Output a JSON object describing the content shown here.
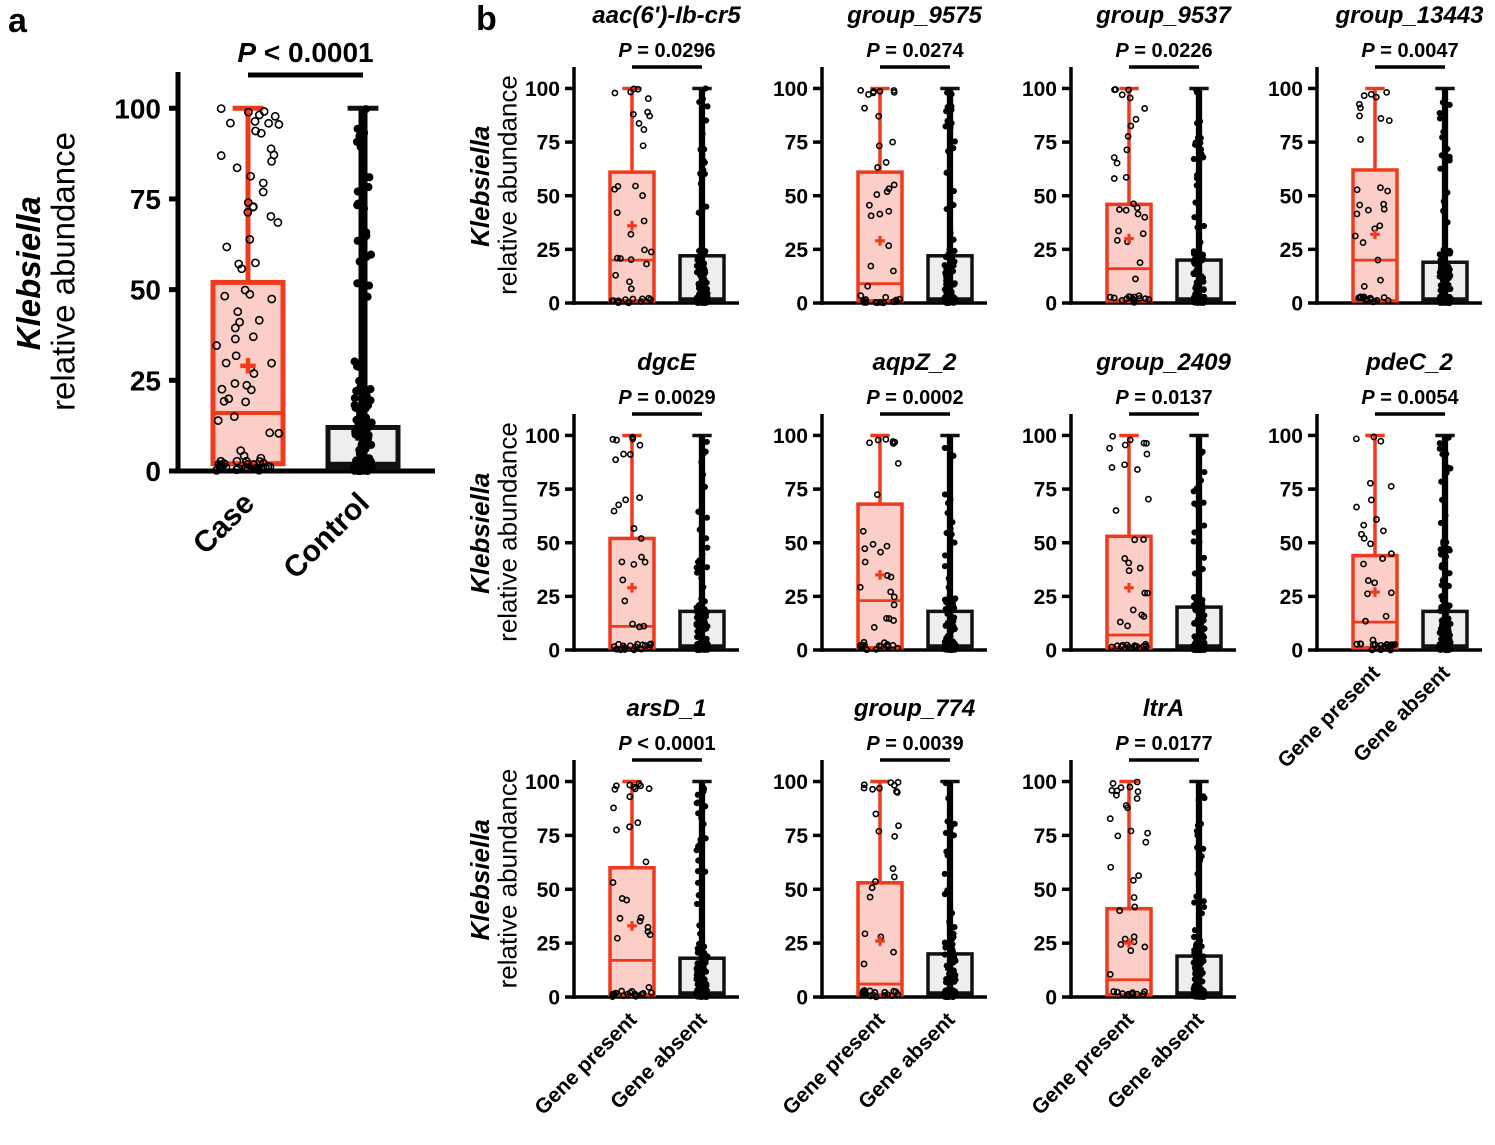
{
  "colors": {
    "case": "#f03a1e",
    "case_fill": "#fbcfc7",
    "control": "#111111",
    "control_fill": "#eeeeee"
  },
  "chart_data": [
    {
      "panel": "a",
      "type": "box",
      "ylabel_italic": "Klebsiella",
      "ylabel": "relative abundance",
      "yticks": [
        0,
        25,
        50,
        75,
        100
      ],
      "ylim": [
        0,
        110
      ],
      "categories": [
        "Case",
        "Control"
      ],
      "pvalue_prefix": "P",
      "pvalue_text": " < 0.0001",
      "series": [
        {
          "name": "Case",
          "min": 0,
          "q1": 2,
          "median": 16,
          "q3": 52,
          "max": 100,
          "mean": 29
        },
        {
          "name": "Control",
          "min": 0,
          "q1": 1,
          "median": 2,
          "q3": 12,
          "max": 100,
          "mean": 9
        }
      ]
    },
    {
      "panel": "b",
      "gene": "aac(6')-Ib-cr5",
      "type": "box",
      "ylabel_italic": "Klebsiella",
      "ylabel": "relative abundance",
      "yticks": [
        0,
        25,
        50,
        75,
        100
      ],
      "ylim": [
        0,
        110
      ],
      "categories": [
        "Gene present",
        "Gene absent"
      ],
      "pvalue_prefix": "P",
      "pvalue_text": " = 0.0296",
      "series": [
        {
          "name": "Gene present",
          "min": 0,
          "q1": 1,
          "median": 20,
          "q3": 61,
          "max": 100,
          "mean": 36
        },
        {
          "name": "Gene absent",
          "min": 0,
          "q1": 1,
          "median": 2,
          "q3": 22,
          "max": 100,
          "mean": 13
        }
      ]
    },
    {
      "panel": "b",
      "gene": "group_9575",
      "type": "box",
      "ylabel_italic": "Klebsiella",
      "ylabel": "relative abundance",
      "yticks": [
        0,
        25,
        50,
        75,
        100
      ],
      "ylim": [
        0,
        110
      ],
      "categories": [
        "Gene present",
        "Gene absent"
      ],
      "pvalue_prefix": "P",
      "pvalue_text": " = 0.0274",
      "series": [
        {
          "name": "Gene present",
          "min": 0,
          "q1": 1,
          "median": 9,
          "q3": 61,
          "max": 100,
          "mean": 29
        },
        {
          "name": "Gene absent",
          "min": 0,
          "q1": 1,
          "median": 2,
          "q3": 22,
          "max": 100,
          "mean": 17
        }
      ]
    },
    {
      "panel": "b",
      "gene": "group_9537",
      "type": "box",
      "ylabel_italic": "Klebsiella",
      "ylabel": "relative abundance",
      "yticks": [
        0,
        25,
        50,
        75,
        100
      ],
      "ylim": [
        0,
        110
      ],
      "categories": [
        "Gene present",
        "Gene absent"
      ],
      "pvalue_prefix": "P",
      "pvalue_text": " = 0.0226",
      "series": [
        {
          "name": "Gene present",
          "min": 0,
          "q1": 1,
          "median": 16,
          "q3": 46,
          "max": 100,
          "mean": 30
        },
        {
          "name": "Gene absent",
          "min": 0,
          "q1": 1,
          "median": 2,
          "q3": 20,
          "max": 100,
          "mean": 13
        }
      ]
    },
    {
      "panel": "b",
      "gene": "group_13443",
      "type": "box",
      "ylabel_italic": "Klebsiella",
      "ylabel": "relative abundance",
      "yticks": [
        0,
        25,
        50,
        75,
        100
      ],
      "ylim": [
        0,
        110
      ],
      "categories": [
        "Gene present",
        "Gene absent"
      ],
      "pvalue_prefix": "P",
      "pvalue_text": " = 0.0047",
      "series": [
        {
          "name": "Gene present",
          "min": 0,
          "q1": 1,
          "median": 20,
          "q3": 62,
          "max": 100,
          "mean": 32
        },
        {
          "name": "Gene absent",
          "min": 0,
          "q1": 1,
          "median": 2,
          "q3": 19,
          "max": 100,
          "mean": 13
        }
      ]
    },
    {
      "panel": "b",
      "gene": "dgcE",
      "type": "box",
      "ylabel_italic": "Klebsiella",
      "ylabel": "relative abundance",
      "yticks": [
        0,
        25,
        50,
        75,
        100
      ],
      "ylim": [
        0,
        110
      ],
      "categories": [
        "Gene present",
        "Gene absent"
      ],
      "pvalue_prefix": "P",
      "pvalue_text": " = 0.0029",
      "series": [
        {
          "name": "Gene present",
          "min": 0,
          "q1": 1,
          "median": 11,
          "q3": 52,
          "max": 100,
          "mean": 29
        },
        {
          "name": "Gene absent",
          "min": 0,
          "q1": 1,
          "median": 2,
          "q3": 18,
          "max": 100,
          "mean": 13
        }
      ]
    },
    {
      "panel": "b",
      "gene": "aqpZ_2",
      "type": "box",
      "ylabel_italic": "Klebsiella",
      "ylabel": "relative abundance",
      "yticks": [
        0,
        25,
        50,
        75,
        100
      ],
      "ylim": [
        0,
        110
      ],
      "categories": [
        "Gene present",
        "Gene absent"
      ],
      "pvalue_prefix": "P",
      "pvalue_text": " = 0.0002",
      "series": [
        {
          "name": "Gene present",
          "min": 0,
          "q1": 1,
          "median": 23,
          "q3": 68,
          "max": 100,
          "mean": 35
        },
        {
          "name": "Gene absent",
          "min": 0,
          "q1": 1,
          "median": 2,
          "q3": 18,
          "max": 100,
          "mean": 13
        }
      ]
    },
    {
      "panel": "b",
      "gene": "group_2409",
      "type": "box",
      "ylabel_italic": "Klebsiella",
      "ylabel": "relative abundance",
      "yticks": [
        0,
        25,
        50,
        75,
        100
      ],
      "ylim": [
        0,
        110
      ],
      "categories": [
        "Gene present",
        "Gene absent"
      ],
      "pvalue_prefix": "P",
      "pvalue_text": " = 0.0137",
      "series": [
        {
          "name": "Gene present",
          "min": 0,
          "q1": 1,
          "median": 7,
          "q3": 53,
          "max": 100,
          "mean": 29
        },
        {
          "name": "Gene absent",
          "min": 0,
          "q1": 1,
          "median": 2,
          "q3": 20,
          "max": 100,
          "mean": 13
        }
      ]
    },
    {
      "panel": "b",
      "gene": "pdeC_2",
      "type": "box",
      "ylabel_italic": "Klebsiella",
      "ylabel": "relative abundance",
      "yticks": [
        0,
        25,
        50,
        75,
        100
      ],
      "ylim": [
        0,
        110
      ],
      "categories": [
        "Gene present",
        "Gene absent"
      ],
      "pvalue_prefix": "P",
      "pvalue_text": " = 0.0054",
      "series": [
        {
          "name": "Gene present",
          "min": 0,
          "q1": 1,
          "median": 13,
          "q3": 44,
          "max": 100,
          "mean": 27
        },
        {
          "name": "Gene absent",
          "min": 0,
          "q1": 1,
          "median": 2,
          "q3": 18,
          "max": 100,
          "mean": 13
        }
      ]
    },
    {
      "panel": "b",
      "gene": "arsD_1",
      "type": "box",
      "ylabel_italic": "Klebsiella",
      "ylabel": "relative abundance",
      "yticks": [
        0,
        25,
        50,
        75,
        100
      ],
      "ylim": [
        0,
        110
      ],
      "categories": [
        "Gene present",
        "Gene absent"
      ],
      "pvalue_prefix": "P",
      "pvalue_text": " < 0.0001",
      "series": [
        {
          "name": "Gene present",
          "min": 0,
          "q1": 1,
          "median": 17,
          "q3": 60,
          "max": 100,
          "mean": 33
        },
        {
          "name": "Gene absent",
          "min": 0,
          "q1": 1,
          "median": 2,
          "q3": 18,
          "max": 100,
          "mean": 13
        }
      ]
    },
    {
      "panel": "b",
      "gene": "group_774",
      "type": "box",
      "ylabel_italic": "Klebsiella",
      "ylabel": "relative abundance",
      "yticks": [
        0,
        25,
        50,
        75,
        100
      ],
      "ylim": [
        0,
        110
      ],
      "categories": [
        "Gene present",
        "Gene absent"
      ],
      "pvalue_prefix": "P",
      "pvalue_text": " = 0.0039",
      "series": [
        {
          "name": "Gene present",
          "min": 0,
          "q1": 1,
          "median": 6,
          "q3": 53,
          "max": 100,
          "mean": 26
        },
        {
          "name": "Gene absent",
          "min": 0,
          "q1": 1,
          "median": 2,
          "q3": 20,
          "max": 100,
          "mean": 13
        }
      ]
    },
    {
      "panel": "b",
      "gene": "ltrA",
      "type": "box",
      "ylabel_italic": "Klebsiella",
      "ylabel": "relative abundance",
      "yticks": [
        0,
        25,
        50,
        75,
        100
      ],
      "ylim": [
        0,
        110
      ],
      "categories": [
        "Gene present",
        "Gene absent"
      ],
      "pvalue_prefix": "P",
      "pvalue_text": " = 0.0177",
      "series": [
        {
          "name": "Gene present",
          "min": 0,
          "q1": 1,
          "median": 8,
          "q3": 41,
          "max": 100,
          "mean": 25
        },
        {
          "name": "Gene absent",
          "min": 0,
          "q1": 1,
          "median": 2,
          "q3": 19,
          "max": 100,
          "mean": 13
        }
      ]
    }
  ],
  "panel_labels": {
    "a": "a",
    "b": "b"
  }
}
